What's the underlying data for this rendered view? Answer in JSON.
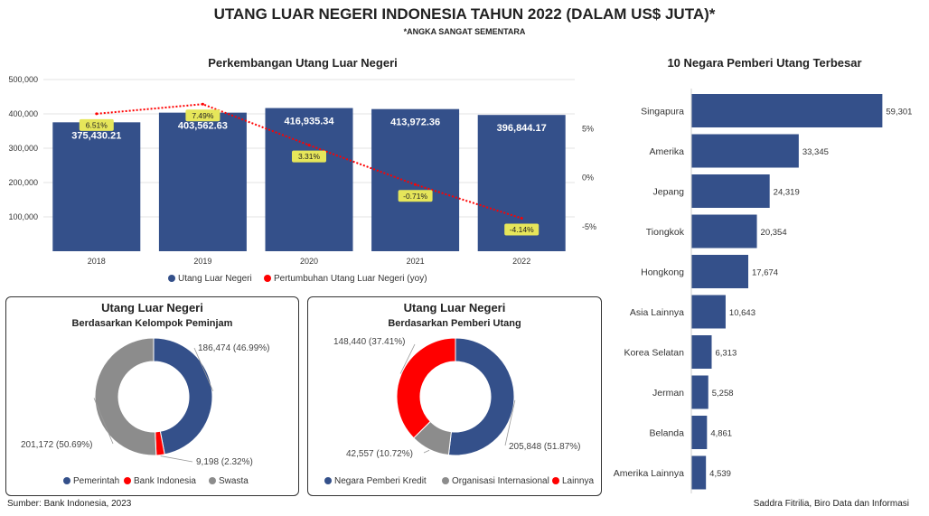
{
  "header": {
    "title": "UTANG LUAR NEGERI INDONESIA TAHUN 2022 (DALAM US$ JUTA)*",
    "subtitle": "*ANGKA SANGAT SEMENTARA"
  },
  "footer": {
    "source": "Sumber: Bank Indonesia, 2023",
    "credit": "Saddra Fitrilia, Biro Data dan Informasi"
  },
  "colors": {
    "navy": "#34508a",
    "red": "#ff0000",
    "gray": "#8c8c8c",
    "label_bg": "#e6e65a"
  },
  "chart_data": [
    {
      "id": "debt-trend",
      "type": "bar",
      "title": "Perkembangan Utang Luar Negeri",
      "categories": [
        "2018",
        "2019",
        "2020",
        "2021",
        "2022"
      ],
      "series": [
        {
          "name": "Utang Luar Negeri",
          "values": [
            375430.21,
            403562.63,
            416935.34,
            413972.36,
            396844.17
          ],
          "labels": [
            "375,430.21",
            "403,562.63",
            "416,935.34",
            "413,972.36",
            "396,844.17"
          ]
        },
        {
          "name": "Pertumbuhan Utang Luar Negeri (yoy)",
          "type": "line",
          "values": [
            6.51,
            7.49,
            3.31,
            -0.71,
            -4.14
          ],
          "labels": [
            "6.51%",
            "7.49%",
            "3.31%",
            "-0.71%",
            "-4.14%"
          ]
        }
      ],
      "ylim": [
        0,
        500000
      ],
      "yticks": [
        "500,000",
        "400,000",
        "300,000",
        "200,000",
        "100,000"
      ],
      "y2lim": [
        -7.5,
        10
      ],
      "y2ticks": [
        "5%",
        "0%",
        "-5%"
      ],
      "legend": "bottom"
    },
    {
      "id": "top-lenders",
      "type": "bar",
      "orientation": "horizontal",
      "title": "10 Negara Pemberi Utang Terbesar",
      "categories": [
        "Singapura",
        "Amerika",
        "Jepang",
        "Tiongkok",
        "Hongkong",
        "Asia Lainnya",
        "Korea Selatan",
        "Jerman",
        "Belanda",
        "Amerika Lainnya"
      ],
      "values": [
        59301,
        33345,
        24319,
        20354,
        17674,
        10643,
        6313,
        5258,
        4861,
        4539
      ],
      "labels": [
        "59,301",
        "33,345",
        "24,319",
        "20,354",
        "17,674",
        "10,643",
        "6,313",
        "5,258",
        "4,861",
        "4,539"
      ],
      "xlim": [
        0,
        62000
      ]
    },
    {
      "id": "borrower-donut",
      "type": "pie",
      "style": "donut",
      "title": "Utang Luar Negeri",
      "subtitle": "Berdasarkan Kelompok Peminjam",
      "categories": [
        "Pemerintah",
        "Bank Indonesia",
        "Swasta"
      ],
      "values": [
        186474,
        9198,
        201172
      ],
      "labels": [
        "186,474 (46.99%)",
        "9,198 (2.32%)",
        "201,172 (50.69%)"
      ],
      "legend": "bottom"
    },
    {
      "id": "lender-donut",
      "type": "pie",
      "style": "donut",
      "title": "Utang Luar Negeri",
      "subtitle": "Berdasarkan Pemberi Utang",
      "categories": [
        "Negara Pemberi Kredit",
        "Organisasi Internasional",
        "Lainnya"
      ],
      "values": [
        205848,
        42557,
        148440
      ],
      "labels": [
        "205,848 (51.87%)",
        "42,557 (10.72%)",
        "148,440 (37.41%)"
      ],
      "legend": "bottom"
    }
  ]
}
